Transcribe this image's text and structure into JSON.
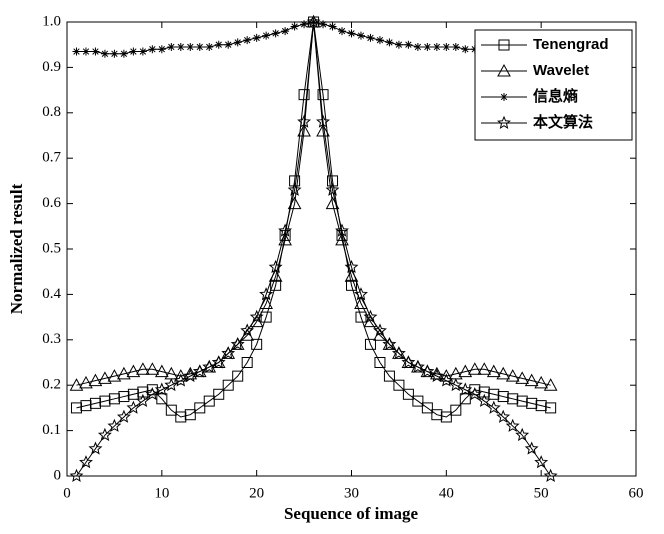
{
  "chart_data": {
    "type": "line",
    "xlabel": "Sequence of image",
    "ylabel": "Normalized result",
    "x": [
      1,
      2,
      3,
      4,
      5,
      6,
      7,
      8,
      9,
      10,
      11,
      12,
      13,
      14,
      15,
      16,
      17,
      18,
      19,
      20,
      21,
      22,
      23,
      24,
      25,
      26,
      27,
      28,
      29,
      30,
      31,
      32,
      33,
      34,
      35,
      36,
      37,
      38,
      39,
      40,
      41,
      42,
      43,
      44,
      45,
      46,
      47,
      48,
      49,
      50,
      51
    ],
    "series": [
      {
        "name": "Tenengrad",
        "color": "#000000",
        "marker": "square",
        "values": [
          0.15,
          0.155,
          0.16,
          0.165,
          0.17,
          0.175,
          0.18,
          0.185,
          0.19,
          0.17,
          0.145,
          0.13,
          0.135,
          0.15,
          0.165,
          0.18,
          0.2,
          0.22,
          0.25,
          0.29,
          0.35,
          0.42,
          0.53,
          0.65,
          0.84,
          1.0,
          0.84,
          0.65,
          0.53,
          0.42,
          0.35,
          0.29,
          0.25,
          0.22,
          0.2,
          0.18,
          0.165,
          0.15,
          0.135,
          0.13,
          0.145,
          0.17,
          0.19,
          0.185,
          0.18,
          0.175,
          0.17,
          0.165,
          0.16,
          0.155,
          0.15
        ]
      },
      {
        "name": "Wavelet",
        "color": "#000000",
        "marker": "triangle",
        "values": [
          0.2,
          0.205,
          0.21,
          0.215,
          0.22,
          0.225,
          0.23,
          0.235,
          0.235,
          0.23,
          0.225,
          0.22,
          0.225,
          0.23,
          0.24,
          0.25,
          0.27,
          0.29,
          0.31,
          0.34,
          0.38,
          0.44,
          0.52,
          0.6,
          0.76,
          1.0,
          0.76,
          0.6,
          0.52,
          0.44,
          0.38,
          0.34,
          0.31,
          0.29,
          0.27,
          0.25,
          0.24,
          0.23,
          0.225,
          0.22,
          0.225,
          0.23,
          0.235,
          0.235,
          0.23,
          0.225,
          0.22,
          0.215,
          0.21,
          0.205,
          0.2
        ]
      },
      {
        "name": "信息熵",
        "color": "#000000",
        "marker": "asterisk",
        "values": [
          0.935,
          0.935,
          0.935,
          0.93,
          0.93,
          0.93,
          0.935,
          0.935,
          0.94,
          0.94,
          0.945,
          0.945,
          0.945,
          0.945,
          0.945,
          0.95,
          0.95,
          0.955,
          0.96,
          0.965,
          0.97,
          0.975,
          0.98,
          0.99,
          0.995,
          1.0,
          0.995,
          0.99,
          0.98,
          0.975,
          0.97,
          0.965,
          0.96,
          0.955,
          0.95,
          0.95,
          0.945,
          0.945,
          0.945,
          0.945,
          0.945,
          0.94,
          0.94,
          0.935,
          0.935,
          0.93,
          0.93,
          0.93,
          0.935,
          0.935,
          0.935
        ]
      },
      {
        "name": "本文算法",
        "color": "#000000",
        "marker": "star",
        "values": [
          0,
          0.03,
          0.06,
          0.09,
          0.11,
          0.13,
          0.15,
          0.165,
          0.18,
          0.19,
          0.2,
          0.21,
          0.22,
          0.23,
          0.24,
          0.25,
          0.27,
          0.29,
          0.32,
          0.35,
          0.4,
          0.46,
          0.54,
          0.63,
          0.78,
          1.0,
          0.78,
          0.63,
          0.54,
          0.46,
          0.4,
          0.35,
          0.32,
          0.29,
          0.27,
          0.25,
          0.24,
          0.23,
          0.22,
          0.21,
          0.2,
          0.19,
          0.18,
          0.165,
          0.15,
          0.13,
          0.11,
          0.09,
          0.06,
          0.03,
          0
        ]
      }
    ],
    "xlim": [
      0,
      60
    ],
    "xticks": [
      0,
      10,
      20,
      30,
      40,
      50,
      60
    ],
    "ylim": [
      0,
      1
    ],
    "yticks": [
      0,
      0.1,
      0.2,
      0.3,
      0.4,
      0.5,
      0.6,
      0.7,
      0.8,
      0.9,
      {
        "value": 1,
        "label": "1.0"
      }
    ],
    "grid": false,
    "legend": "upper right"
  }
}
